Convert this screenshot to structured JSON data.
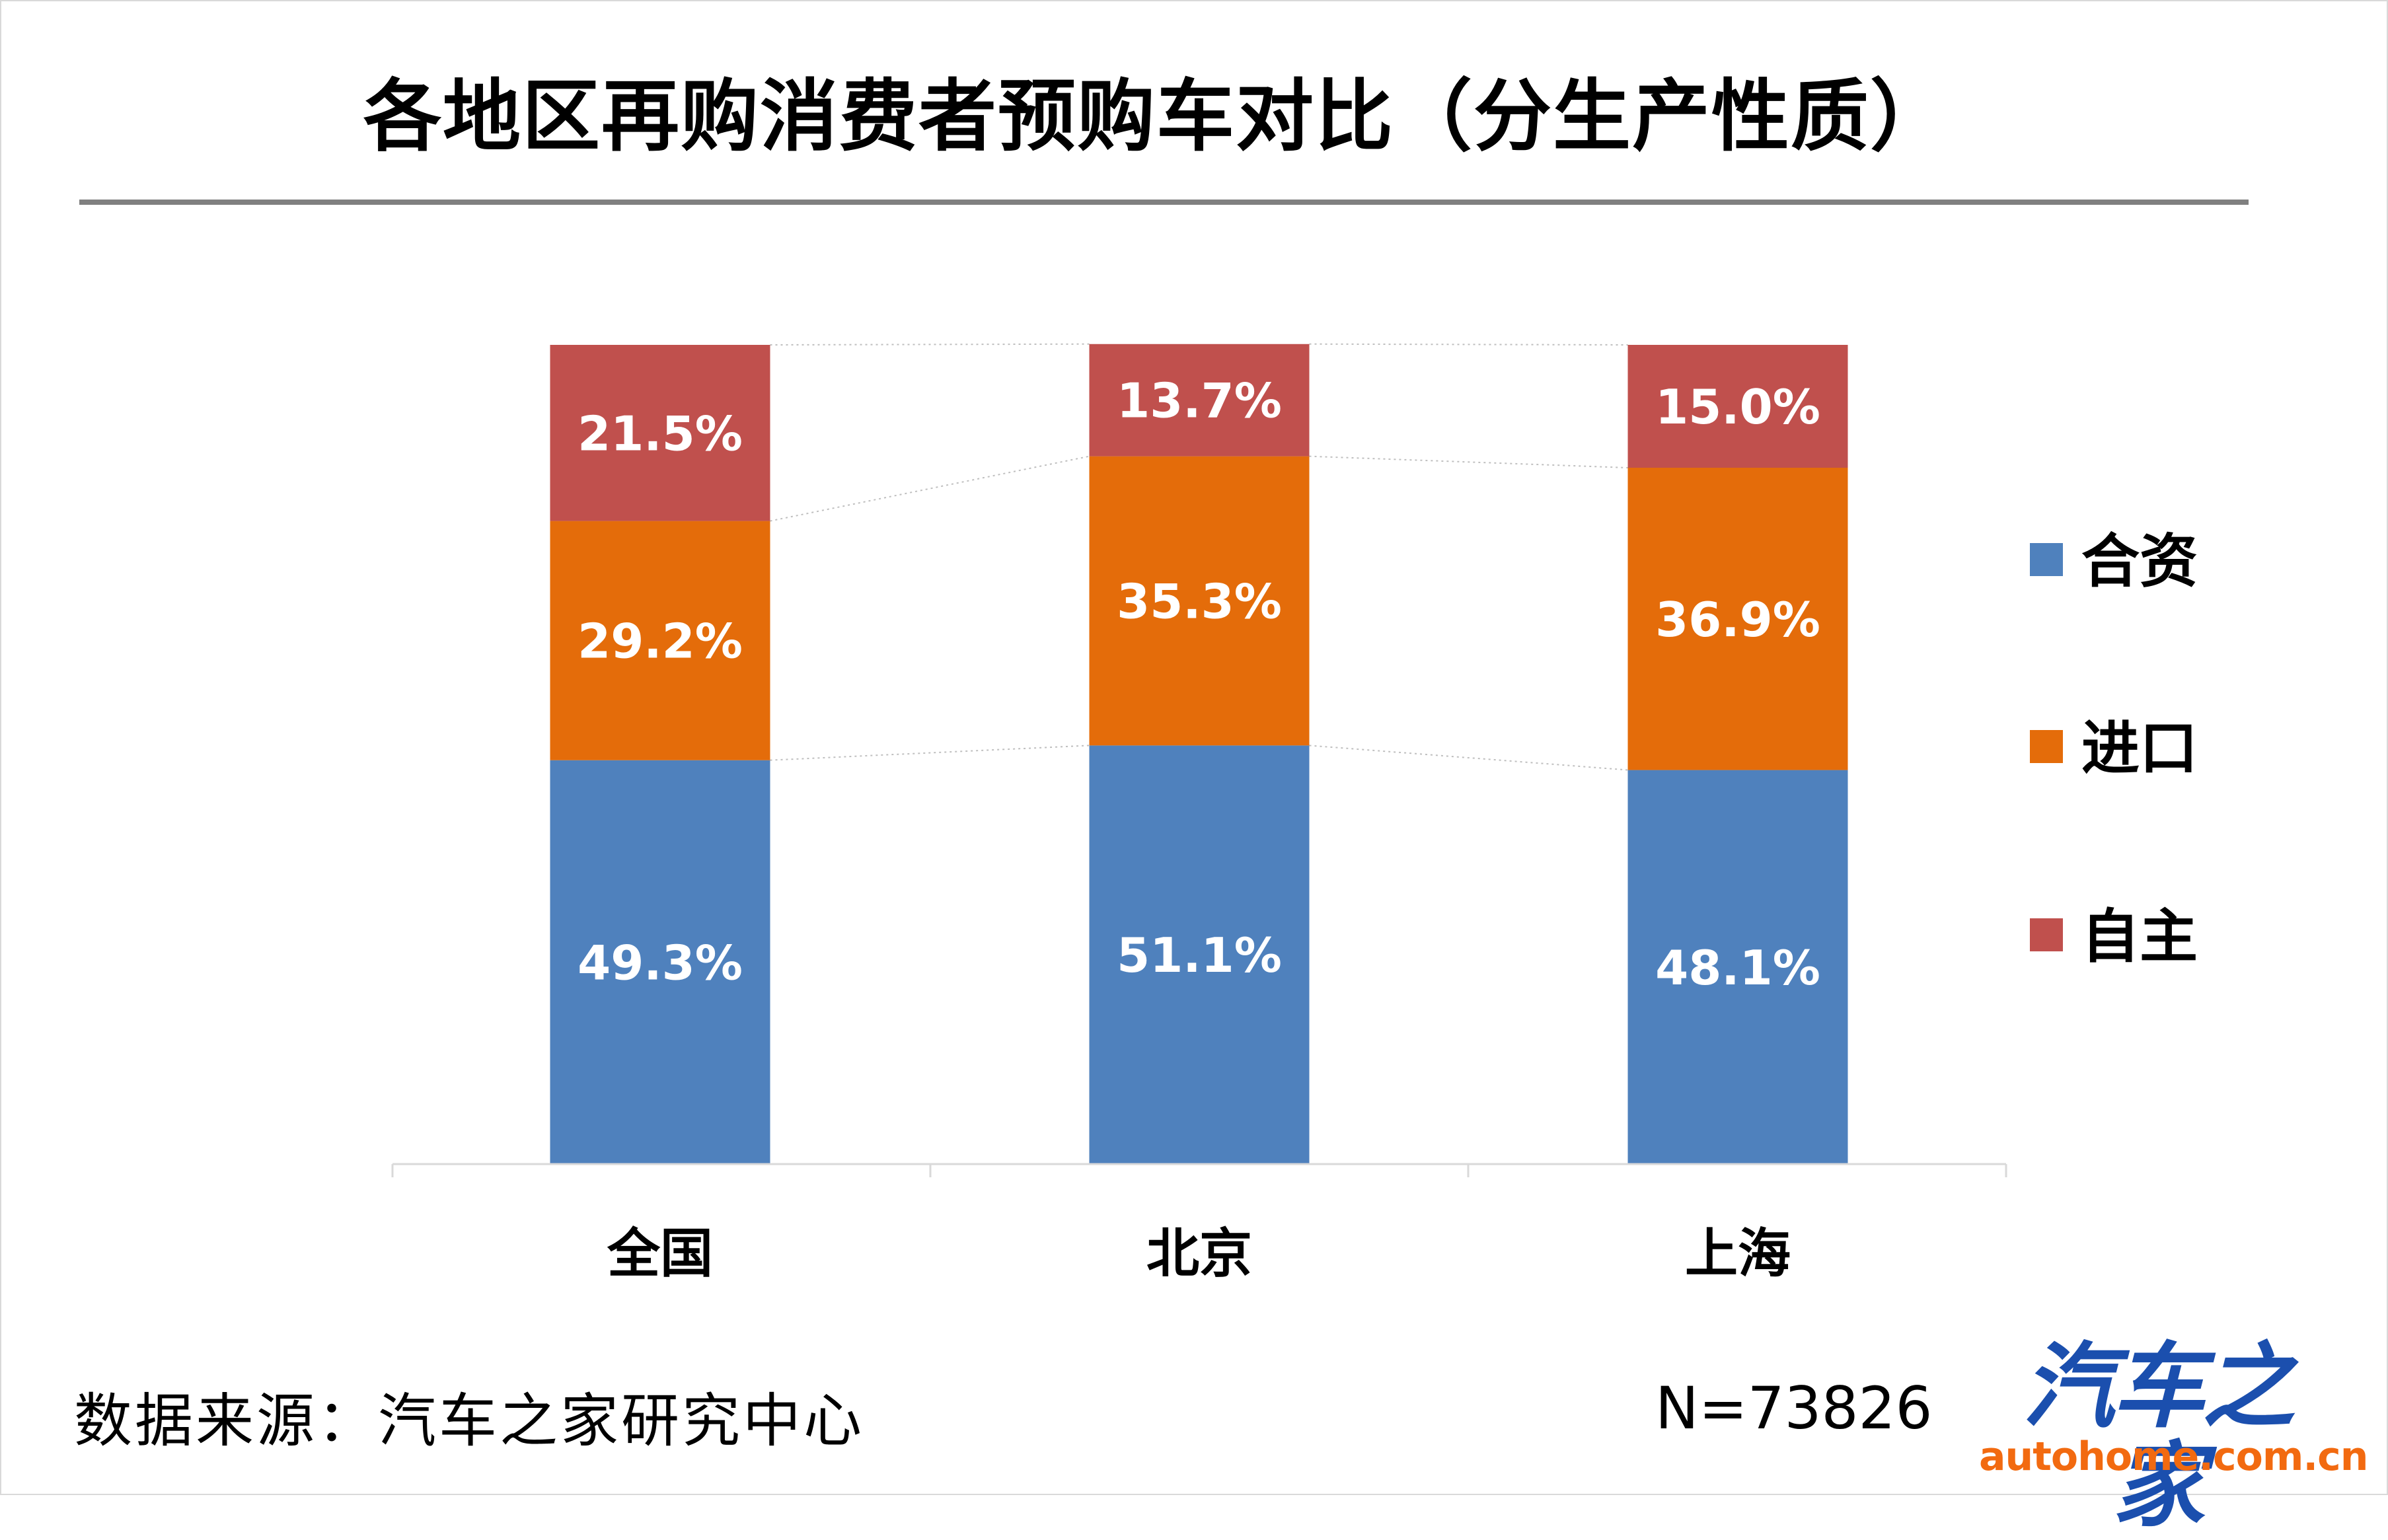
{
  "page": {
    "title": "各地区再购消费者预购车对比（分生产性质）",
    "source": "数据来源：汽车之家研究中心",
    "sample_size": "N=73826",
    "logo": {
      "main": "汽车之家",
      "sub": "autohome.com.cn"
    }
  },
  "chart_data": {
    "type": "bar",
    "stacked": true,
    "percent_stacked": true,
    "categories": [
      "全国",
      "北京",
      "上海"
    ],
    "series": [
      {
        "name": "合资",
        "values": [
          49.3,
          51.1,
          48.1
        ],
        "labels": [
          "49.3%",
          "51.1%",
          "48.1%"
        ],
        "color": "#4f81bd"
      },
      {
        "name": "进口",
        "values": [
          29.2,
          35.3,
          36.9
        ],
        "labels": [
          "29.2%",
          "35.3%",
          "36.9%"
        ],
        "color": "#e46c0a"
      },
      {
        "name": "自主",
        "values": [
          21.5,
          13.7,
          15.0
        ],
        "labels": [
          "21.5%",
          "13.7%",
          "15.0%"
        ],
        "color": "#c0504d"
      }
    ],
    "ylim": [
      0,
      100
    ],
    "legend_position": "right",
    "grid": false,
    "series_lines": true,
    "label_color": "#ffffff"
  }
}
